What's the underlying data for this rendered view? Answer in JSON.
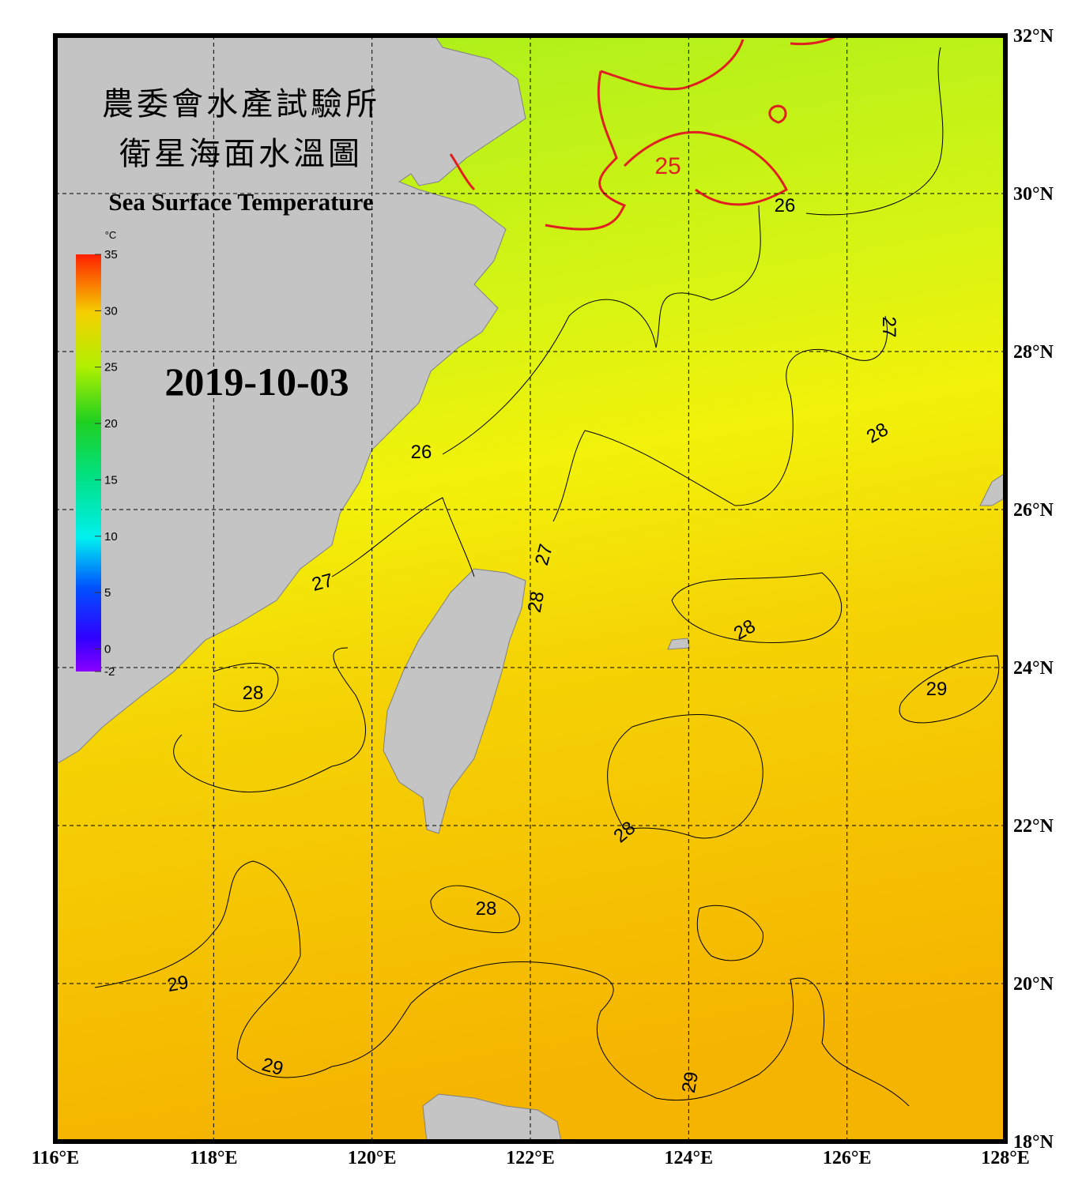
{
  "header": {
    "title_zh_1": "農委會水產試驗所",
    "title_zh_2": "衛星海面水溫圖",
    "title_en": "Sea Surface Temperature",
    "date": "2019-10-03"
  },
  "colorbar": {
    "unit": "°C",
    "lim": [
      -2,
      35
    ],
    "ticks": [
      -2,
      0,
      5,
      10,
      15,
      20,
      25,
      30,
      35
    ]
  },
  "longitude": {
    "lim": [
      116,
      128
    ],
    "ticks": [
      {
        "value": 116,
        "label": "116°E"
      },
      {
        "value": 118,
        "label": "118°E"
      },
      {
        "value": 120,
        "label": "120°E"
      },
      {
        "value": 122,
        "label": "122°E"
      },
      {
        "value": 124,
        "label": "124°E"
      },
      {
        "value": 126,
        "label": "126°E"
      },
      {
        "value": 128,
        "label": "128°E"
      }
    ]
  },
  "latitude": {
    "lim": [
      18,
      32
    ],
    "ticks": [
      {
        "value": 18,
        "label": "18°N"
      },
      {
        "value": 20,
        "label": "20°N"
      },
      {
        "value": 22,
        "label": "22°N"
      },
      {
        "value": 24,
        "label": "24°N"
      },
      {
        "value": 26,
        "label": "26°N"
      },
      {
        "value": 28,
        "label": "28°N"
      },
      {
        "value": 30,
        "label": "30°N"
      },
      {
        "value": 32,
        "label": "32°N"
      }
    ]
  },
  "contour_labels": [
    25,
    26,
    27,
    28,
    26,
    27,
    27,
    28,
    28,
    28,
    29,
    28,
    28,
    29,
    29,
    29
  ]
}
